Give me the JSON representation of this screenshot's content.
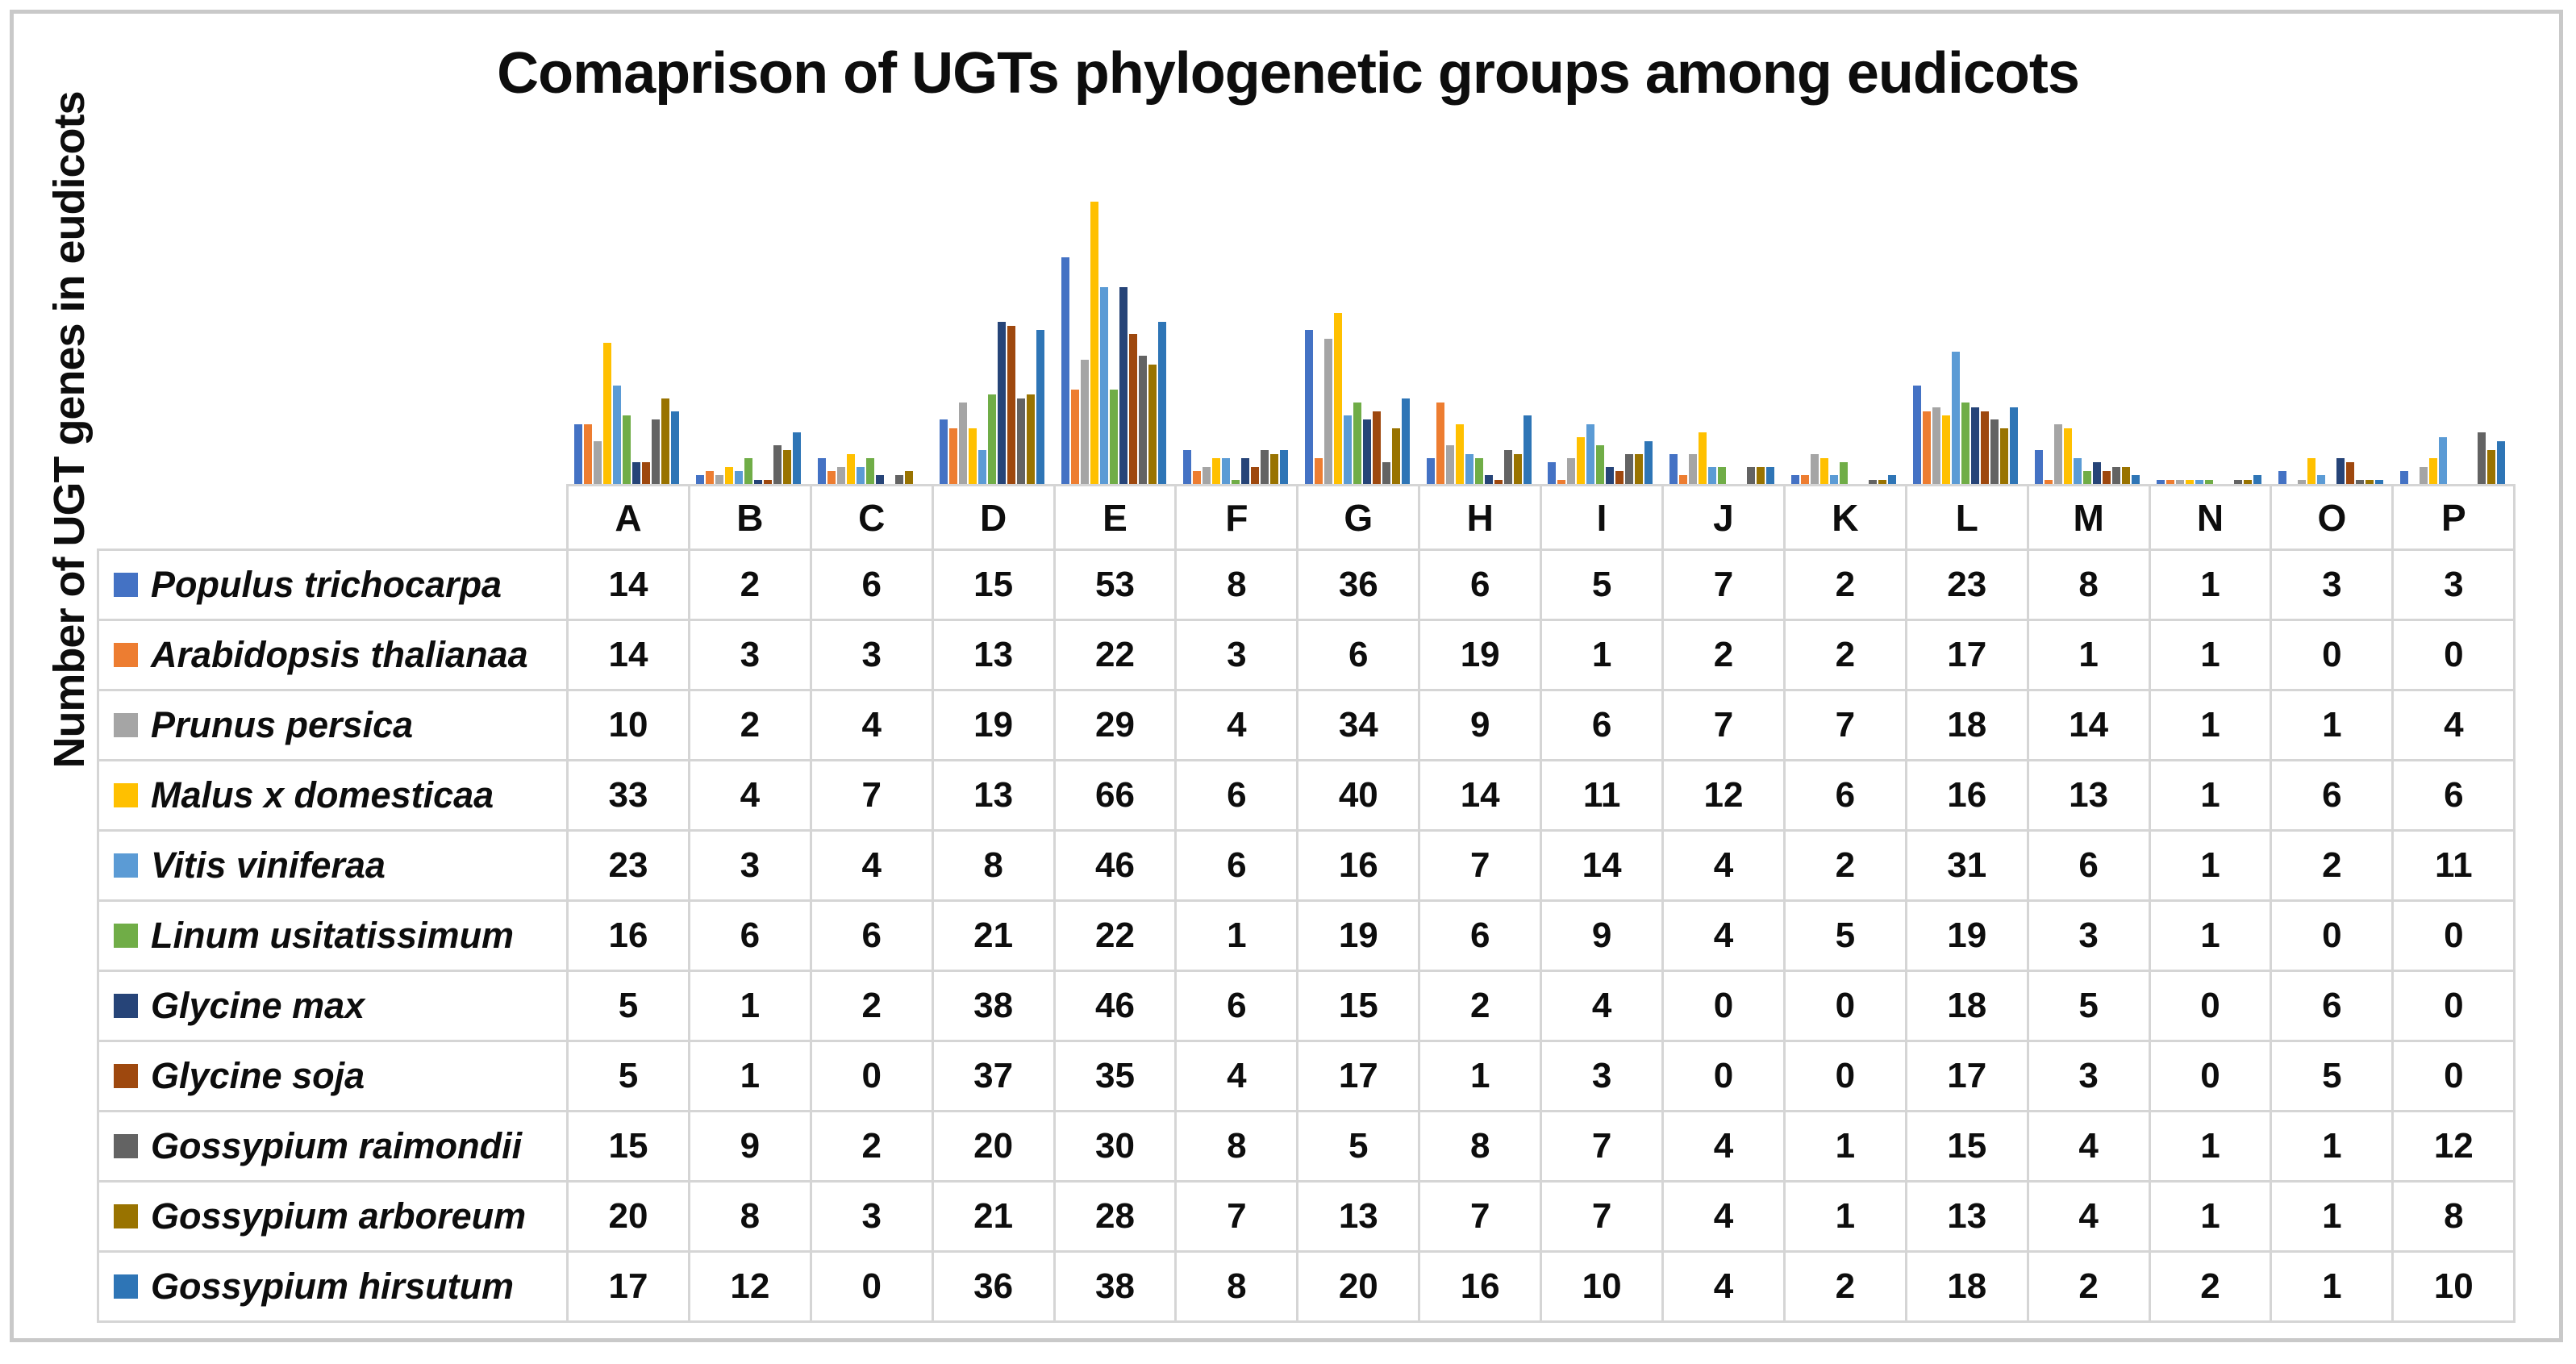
{
  "figure": {
    "title": "Comaprison of UGTs phylogenetic groups among eudicots",
    "y_axis_label": "Number of UGT genes in eudicots"
  },
  "chart_data": {
    "type": "bar",
    "title": "Comaprison of UGTs phylogenetic groups among eudicots",
    "xlabel": "",
    "ylabel": "Number of UGT genes in eudicots",
    "ylim": [
      0,
      70
    ],
    "grid": false,
    "legend_position": "table-rows-left",
    "categories": [
      "A",
      "B",
      "C",
      "D",
      "E",
      "F",
      "G",
      "H",
      "I",
      "J",
      "K",
      "L",
      "M",
      "N",
      "O",
      "P"
    ],
    "series": [
      {
        "name": "Populus trichocarpa",
        "color": "#4472C4",
        "values": [
          14,
          2,
          6,
          15,
          53,
          8,
          36,
          6,
          5,
          7,
          2,
          23,
          8,
          1,
          3,
          3
        ]
      },
      {
        "name": "Arabidopsis thalianaa",
        "color": "#ED7D31",
        "values": [
          14,
          3,
          3,
          13,
          22,
          3,
          6,
          19,
          1,
          2,
          2,
          17,
          1,
          1,
          0,
          0
        ]
      },
      {
        "name": "Prunus persica",
        "color": "#A5A5A5",
        "values": [
          10,
          2,
          4,
          19,
          29,
          4,
          34,
          9,
          6,
          7,
          7,
          18,
          14,
          1,
          1,
          4
        ]
      },
      {
        "name": "Malus x domesticaa",
        "color": "#FFC000",
        "values": [
          33,
          4,
          7,
          13,
          66,
          6,
          40,
          14,
          11,
          12,
          6,
          16,
          13,
          1,
          6,
          6
        ]
      },
      {
        "name": "Vitis viniferaa",
        "color": "#5B9BD5",
        "values": [
          23,
          3,
          4,
          8,
          46,
          6,
          16,
          7,
          14,
          4,
          2,
          31,
          6,
          1,
          2,
          11
        ]
      },
      {
        "name": "Linum usitatissimum",
        "color": "#70AD47",
        "values": [
          16,
          6,
          6,
          21,
          22,
          1,
          19,
          6,
          9,
          4,
          5,
          19,
          3,
          1,
          0,
          0
        ]
      },
      {
        "name": "Glycine max",
        "color": "#264478",
        "values": [
          5,
          1,
          2,
          38,
          46,
          6,
          15,
          2,
          4,
          0,
          0,
          18,
          5,
          0,
          6,
          0
        ]
      },
      {
        "name": "Glycine soja",
        "color": "#9E480E",
        "values": [
          5,
          1,
          0,
          37,
          35,
          4,
          17,
          1,
          3,
          0,
          0,
          17,
          3,
          0,
          5,
          0
        ]
      },
      {
        "name": "Gossypium raimondii",
        "color": "#636363",
        "values": [
          15,
          9,
          2,
          20,
          30,
          8,
          5,
          8,
          7,
          4,
          1,
          15,
          4,
          1,
          1,
          12
        ]
      },
      {
        "name": "Gossypium arboreum",
        "color": "#997300",
        "values": [
          20,
          8,
          3,
          21,
          28,
          7,
          13,
          7,
          7,
          4,
          1,
          13,
          4,
          1,
          1,
          8
        ]
      },
      {
        "name": "Gossypium hirsutum",
        "color": "#2E75B6",
        "values": [
          17,
          12,
          0,
          36,
          38,
          8,
          20,
          16,
          10,
          4,
          2,
          18,
          2,
          2,
          1,
          10
        ]
      }
    ]
  }
}
